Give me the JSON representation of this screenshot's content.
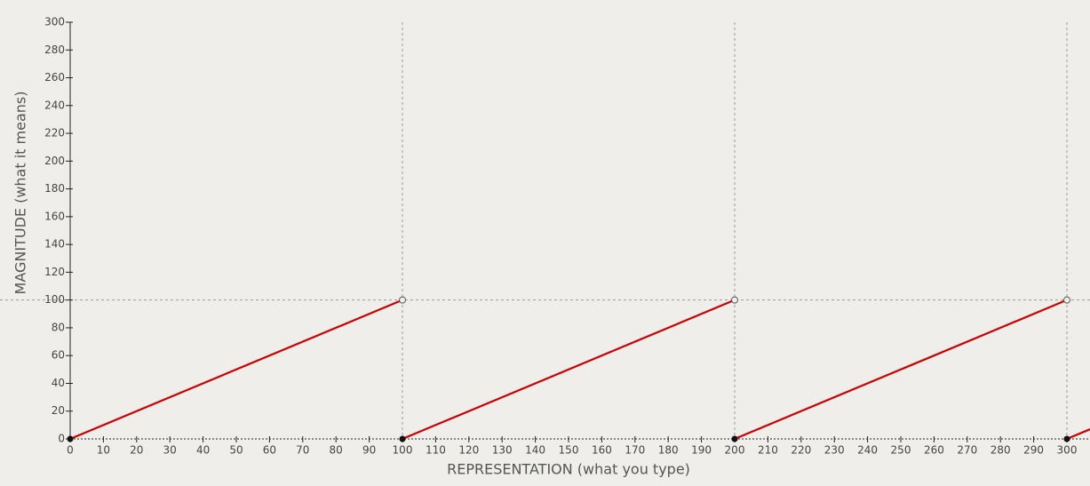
{
  "chart_data": {
    "type": "line",
    "x_label": "REPRESENTATION (what you type)",
    "y_label": "MAGNITUDE (what it means)",
    "x": [
      0,
      100,
      100,
      100,
      200,
      200,
      200,
      300,
      300,
      300,
      307
    ],
    "values": [
      0,
      100,
      null,
      0,
      100,
      null,
      0,
      100,
      null,
      0,
      7
    ],
    "color": "#cc0000",
    "open_points": {
      "x": [
        100,
        200,
        300
      ],
      "y": [
        100,
        100,
        100
      ]
    },
    "closed_points": {
      "x": [
        0,
        100,
        200,
        300
      ],
      "y": [
        0,
        0,
        0,
        0
      ]
    },
    "reference_lines": {
      "x": [
        100,
        200,
        300
      ],
      "y": [
        100
      ]
    },
    "xlim": [
      0,
      300
    ],
    "ylim": [
      0,
      300
    ],
    "xticks": [
      0,
      10,
      20,
      30,
      40,
      50,
      60,
      70,
      80,
      90,
      100,
      110,
      120,
      130,
      140,
      150,
      160,
      170,
      180,
      190,
      200,
      210,
      220,
      230,
      240,
      250,
      260,
      270,
      280,
      290,
      300
    ],
    "yticks": [
      0,
      20,
      40,
      60,
      80,
      100,
      120,
      140,
      160,
      180,
      200,
      220,
      240,
      260,
      280,
      300
    ]
  }
}
